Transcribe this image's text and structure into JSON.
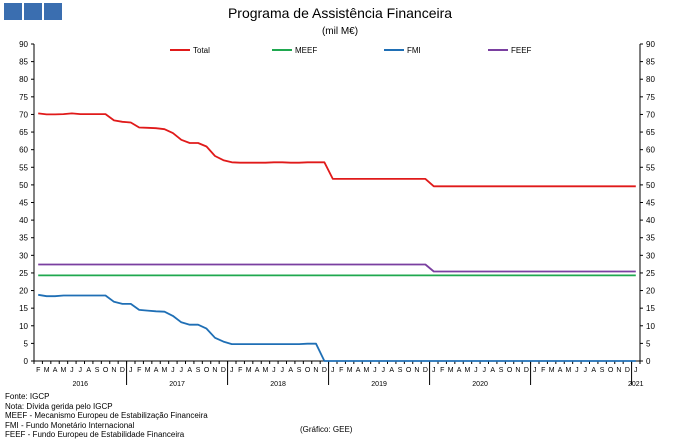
{
  "title": "Programa  de Assistência Financeira",
  "subtitle": "(mil M€)",
  "credit": "(Gráfico: GEE)",
  "notes": [
    "Fonte: IGCP",
    "Nota: Dívida gerida pelo IGCP",
    "MEEF - Mecanismo Europeu de Estabilização Financeira",
    "FMI - Fundo Monetário Internacional",
    "FEEF - Fundo Europeu de Estabilidade Financeira"
  ],
  "chart_data": {
    "type": "line",
    "ylim": [
      0,
      90
    ],
    "yticks": [
      0,
      5,
      10,
      15,
      20,
      25,
      30,
      35,
      40,
      45,
      50,
      55,
      60,
      65,
      70,
      75,
      80,
      85,
      90
    ],
    "grid": false,
    "legend": "top",
    "x_month_letters": [
      "F",
      "M",
      "A",
      "M",
      "J",
      "J",
      "A",
      "S",
      "O",
      "N",
      "D",
      "J",
      "F",
      "M",
      "A",
      "M",
      "J",
      "J",
      "A",
      "S",
      "O",
      "N",
      "D",
      "J",
      "F",
      "M",
      "A",
      "M",
      "J",
      "J",
      "A",
      "S",
      "O",
      "N",
      "D",
      "J",
      "F",
      "M",
      "A",
      "M",
      "J",
      "J",
      "A",
      "S",
      "O",
      "N",
      "D",
      "J",
      "F",
      "M",
      "A",
      "M",
      "J",
      "J",
      "A",
      "S",
      "O",
      "N",
      "D",
      "J",
      "F",
      "M",
      "A",
      "M",
      "J",
      "J",
      "A",
      "S",
      "O",
      "N",
      "D",
      "J"
    ],
    "year_labels": [
      "2016",
      "2017",
      "2018",
      "2019",
      "2020",
      "2021"
    ],
    "series": [
      {
        "name": "Total",
        "color": "#e01a1a",
        "values": [
          70.3,
          70.0,
          70.0,
          70.1,
          70.3,
          70.1,
          70.1,
          70.1,
          70.1,
          68.3,
          67.9,
          67.7,
          66.3,
          66.2,
          66.1,
          65.8,
          64.7,
          62.8,
          61.9,
          61.9,
          60.9,
          58.2,
          57.0,
          56.4,
          56.3,
          56.3,
          56.3,
          56.3,
          56.4,
          56.4,
          56.3,
          56.3,
          56.4,
          56.4,
          56.4,
          51.7,
          51.7,
          51.7,
          51.7,
          51.7,
          51.7,
          51.7,
          51.7,
          51.7,
          51.7,
          51.7,
          51.7,
          49.6,
          49.6,
          49.6,
          49.6,
          49.6,
          49.6,
          49.6,
          49.6,
          49.6,
          49.6,
          49.6,
          49.6,
          49.6,
          49.6,
          49.6,
          49.6,
          49.6,
          49.6,
          49.6,
          49.6,
          49.6,
          49.6,
          49.6,
          49.6,
          49.6
        ]
      },
      {
        "name": "MEEF",
        "color": "#1fa84f",
        "values": [
          24.3,
          24.3,
          24.3,
          24.3,
          24.3,
          24.3,
          24.3,
          24.3,
          24.3,
          24.3,
          24.3,
          24.3,
          24.3,
          24.3,
          24.3,
          24.3,
          24.3,
          24.3,
          24.3,
          24.3,
          24.3,
          24.3,
          24.3,
          24.3,
          24.3,
          24.3,
          24.3,
          24.3,
          24.3,
          24.3,
          24.3,
          24.3,
          24.3,
          24.3,
          24.3,
          24.3,
          24.3,
          24.3,
          24.3,
          24.3,
          24.3,
          24.3,
          24.3,
          24.3,
          24.3,
          24.3,
          24.3,
          24.3,
          24.3,
          24.3,
          24.3,
          24.3,
          24.3,
          24.3,
          24.3,
          24.3,
          24.3,
          24.3,
          24.3,
          24.3,
          24.3,
          24.3,
          24.3,
          24.3,
          24.3,
          24.3,
          24.3,
          24.3,
          24.3,
          24.3,
          24.3,
          24.3
        ]
      },
      {
        "name": "FMI",
        "color": "#1f6fb5",
        "values": [
          18.8,
          18.4,
          18.4,
          18.6,
          18.6,
          18.6,
          18.6,
          18.6,
          18.6,
          16.8,
          16.2,
          16.2,
          14.5,
          14.3,
          14.1,
          14.0,
          12.8,
          11.0,
          10.3,
          10.3,
          9.2,
          6.6,
          5.5,
          4.8,
          4.8,
          4.8,
          4.8,
          4.8,
          4.8,
          4.8,
          4.8,
          4.8,
          4.9,
          4.9,
          0,
          0,
          0,
          0,
          0,
          0,
          0,
          0,
          0,
          0,
          0,
          0,
          0,
          0,
          0,
          0,
          0,
          0,
          0,
          0,
          0,
          0,
          0,
          0,
          0,
          0,
          0,
          0,
          0,
          0,
          0,
          0,
          0,
          0,
          0,
          0,
          0,
          0
        ]
      },
      {
        "name": "FEEF",
        "color": "#7a3fa0",
        "values": [
          27.4,
          27.4,
          27.4,
          27.4,
          27.4,
          27.4,
          27.4,
          27.4,
          27.4,
          27.4,
          27.4,
          27.4,
          27.4,
          27.4,
          27.4,
          27.4,
          27.4,
          27.4,
          27.4,
          27.4,
          27.4,
          27.4,
          27.4,
          27.4,
          27.4,
          27.4,
          27.4,
          27.4,
          27.4,
          27.4,
          27.4,
          27.4,
          27.4,
          27.4,
          27.4,
          27.4,
          27.4,
          27.4,
          27.4,
          27.4,
          27.4,
          27.4,
          27.4,
          27.4,
          27.4,
          27.4,
          27.4,
          25.4,
          25.4,
          25.4,
          25.4,
          25.4,
          25.4,
          25.4,
          25.4,
          25.4,
          25.4,
          25.4,
          25.4,
          25.4,
          25.4,
          25.4,
          25.4,
          25.4,
          25.4,
          25.4,
          25.4,
          25.4,
          25.4,
          25.4,
          25.4,
          25.4
        ]
      }
    ]
  }
}
